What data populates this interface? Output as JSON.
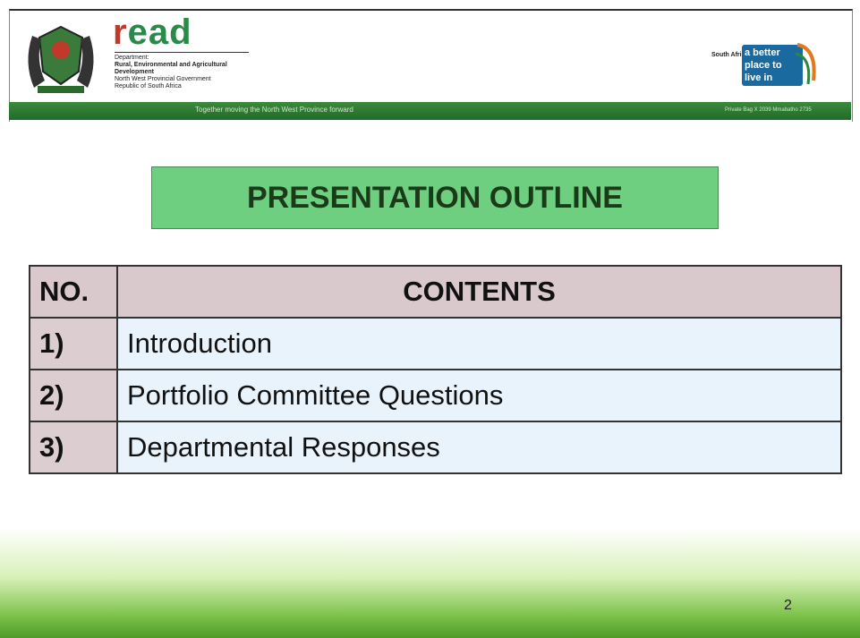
{
  "header": {
    "logo_text": "read",
    "department_label": "Department:",
    "department_name": "Rural, Environmental and Agricultural Development",
    "government": "North West Provincial Government",
    "country": "Republic of South Africa",
    "tagline": "Together moving the North West Province forward",
    "badge_country": "South Africa",
    "badge_slogan": "a better place to live in",
    "address": "Private Bag X 2039 Mmabatho 2735"
  },
  "title": "PRESENTATION OUTLINE",
  "table": {
    "columns": [
      "NO.",
      "CONTENTS"
    ],
    "rows": [
      [
        "1)",
        "Introduction"
      ],
      [
        "2)",
        "Portfolio Committee Questions"
      ],
      [
        "3)",
        "Departmental Responses"
      ]
    ]
  },
  "page_number": "2"
}
